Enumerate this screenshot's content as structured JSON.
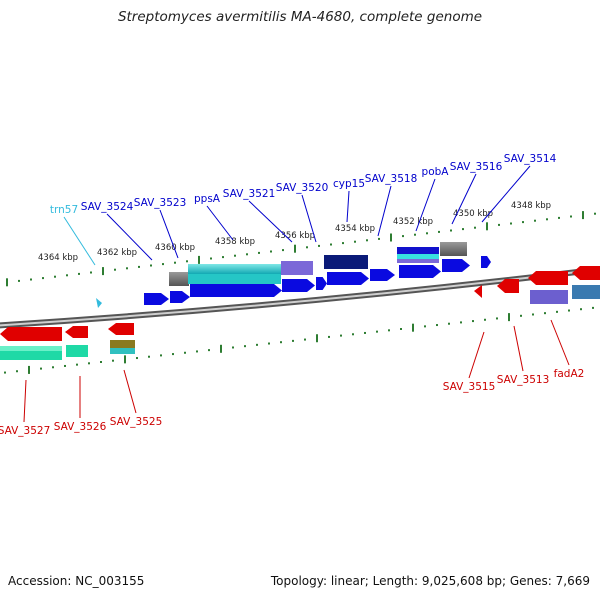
{
  "title": "Streptomyces avermitilis MA-4680, complete genome",
  "footer": {
    "accession": "Accession: NC_003155",
    "summary": "Topology: linear; Length: 9,025,608 bp; Genes: 7,669"
  },
  "ruler_labels": [
    "4364 kbp",
    "4362 kbp",
    "4360 kbp",
    "4358 kbp",
    "4356 kbp",
    "4354 kbp",
    "4352 kbp",
    "4350 kbp",
    "4348 kbp"
  ],
  "forward_genes": [
    "trn57",
    "SAV_3524",
    "SAV_3523",
    "ppsA",
    "SAV_3521",
    "SAV_3520",
    "cyp15",
    "SAV_3518",
    "pobA",
    "SAV_3516",
    "SAV_3514"
  ],
  "reverse_genes": [
    "SAV_3527",
    "SAV_3526",
    "SAV_3525",
    "SAV_3515",
    "SAV_3513",
    "fadA2"
  ],
  "colors": {
    "forward_label": "#0000cc",
    "reverse_label": "#cc0000",
    "trna_label": "#33bbdd",
    "tick": "#2e7d32",
    "backbone": "#777777"
  }
}
